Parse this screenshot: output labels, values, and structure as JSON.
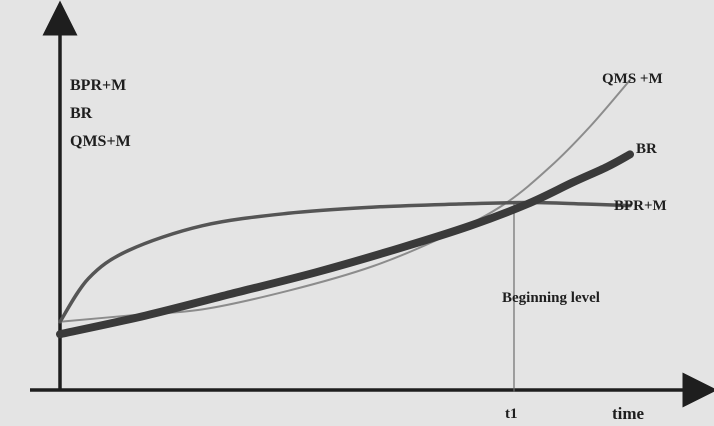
{
  "chart_data": {
    "type": "line",
    "xlabel": "time",
    "ylabel": "",
    "x_ticks": [
      "t1"
    ],
    "legend": [
      "BPR+M",
      "BR",
      "QMS+M"
    ],
    "series": [
      {
        "name": "BPR+M",
        "x": [
          0,
          0.05,
          0.12,
          0.25,
          0.4,
          0.55,
          0.7,
          0.82,
          0.92,
          1.0
        ],
        "y": [
          0.22,
          0.36,
          0.45,
          0.53,
          0.57,
          0.59,
          0.6,
          0.605,
          0.6,
          0.595
        ]
      },
      {
        "name": "BR",
        "x": [
          0,
          0.15,
          0.3,
          0.45,
          0.6,
          0.72,
          0.82,
          0.9,
          0.96,
          1.0
        ],
        "y": [
          0.18,
          0.24,
          0.31,
          0.38,
          0.46,
          0.53,
          0.6,
          0.67,
          0.72,
          0.76
        ]
      },
      {
        "name": "QMS+M",
        "x": [
          0,
          0.12,
          0.25,
          0.4,
          0.55,
          0.68,
          0.78,
          0.86,
          0.93,
          1.0
        ],
        "y": [
          0.22,
          0.24,
          0.26,
          0.32,
          0.4,
          0.5,
          0.6,
          0.72,
          0.85,
          1.0
        ]
      }
    ],
    "series_labels": [
      "QMS +M",
      "BR",
      "BPR+M"
    ],
    "annotations": [
      "Beginning level"
    ],
    "colors": {
      "BPR+M": "#555555",
      "BR": "#3a3a3a",
      "QMS+M": "#8c8c8c"
    },
    "grid": false
  }
}
